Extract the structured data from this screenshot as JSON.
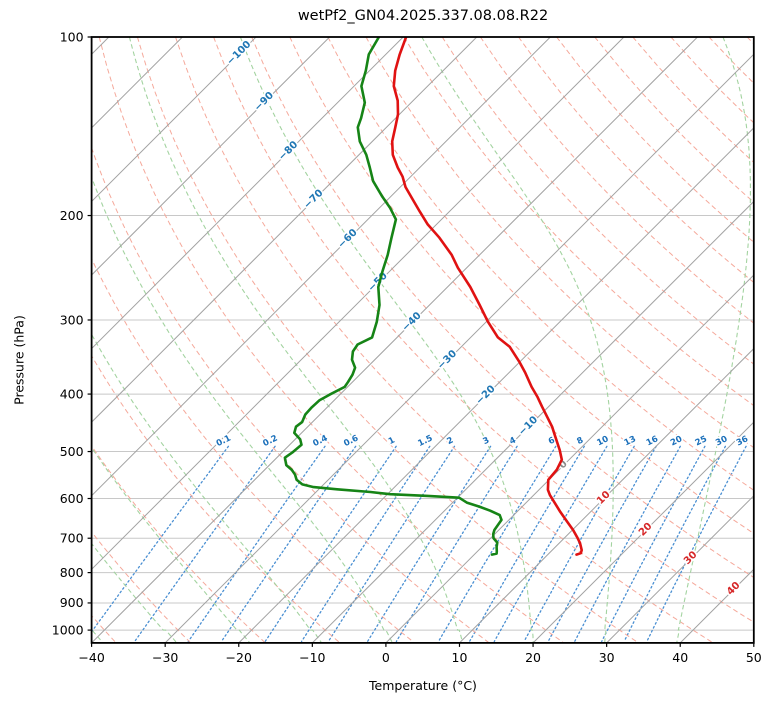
{
  "title": "wetPf2_GN04.2025.337.08.08.R22",
  "axes": {
    "xlabel": "Temperature (°C)",
    "ylabel": "Pressure (hPa)",
    "x_ticks": [
      -40,
      -30,
      -20,
      -10,
      0,
      10,
      20,
      30,
      40,
      50
    ],
    "y_ticks": [
      100,
      200,
      300,
      400,
      500,
      600,
      700,
      800,
      900,
      1000
    ],
    "x_range": [
      -40,
      50
    ],
    "p_range": [
      100,
      1051
    ]
  },
  "colors": {
    "temperature_line": "#e01212",
    "dewpoint_line": "#168416",
    "isobar": "#c8c8c8",
    "isotherm": "#a2a2a2",
    "dry_adiabat": "#f5a99b",
    "moist_adiabat": "#a3d3a0",
    "mixing_line": "#4a8fd2",
    "mixing_label": "#1a6fba",
    "isotherm_label_neg": "#2077b4",
    "isotherm_label_zero": "#8a8a8a",
    "isotherm_label_pos": "#d62728",
    "axis": "#000000"
  },
  "chart_data": {
    "type": "line",
    "subtype": "skew-t-log-p",
    "title": "wetPf2_GN04.2025.337.08.08.R22",
    "xlabel": "Temperature (°C)",
    "ylabel": "Pressure (hPa)",
    "xlim": [
      -40,
      50
    ],
    "plim": [
      100,
      1051
    ],
    "skew_deg": 45,
    "grid": {
      "isotherms": {
        "start": -120,
        "end": 50,
        "step": 10
      },
      "dry_adiabats_theta_c": {
        "start": -40,
        "end": 190,
        "step": 10
      },
      "moist_adiabats_t0_c": {
        "start": -42,
        "end": 38,
        "step": 10
      },
      "mixing_ratio_g_kg": [
        0.1,
        0.2,
        0.4,
        0.6,
        1,
        1.5,
        2,
        3,
        4,
        6,
        8,
        10,
        13,
        16,
        20,
        25,
        30,
        36
      ],
      "mixing_line_p_top": 490,
      "mixing_label_p": 500
    },
    "isotherm_labels": [
      {
        "value": -100,
        "p": 106,
        "color_key": "isotherm_label_neg"
      },
      {
        "value": -90,
        "p": 128,
        "color_key": "isotherm_label_neg"
      },
      {
        "value": -80,
        "p": 155,
        "color_key": "isotherm_label_neg"
      },
      {
        "value": -70,
        "p": 187,
        "color_key": "isotherm_label_neg"
      },
      {
        "value": -60,
        "p": 218,
        "color_key": "isotherm_label_neg"
      },
      {
        "value": -50,
        "p": 258,
        "color_key": "isotherm_label_neg"
      },
      {
        "value": -40,
        "p": 301,
        "color_key": "isotherm_label_neg"
      },
      {
        "value": -30,
        "p": 349,
        "color_key": "isotherm_label_neg"
      },
      {
        "value": -20,
        "p": 400,
        "color_key": "isotherm_label_neg"
      },
      {
        "value": -10,
        "p": 451,
        "color_key": "isotherm_label_neg"
      },
      {
        "value": 0,
        "p": 524,
        "color_key": "isotherm_label_zero"
      },
      {
        "value": 10,
        "p": 596,
        "color_key": "isotherm_label_pos"
      },
      {
        "value": 20,
        "p": 674,
        "color_key": "isotherm_label_pos"
      },
      {
        "value": 30,
        "p": 753,
        "color_key": "isotherm_label_pos"
      },
      {
        "value": 40,
        "p": 848,
        "color_key": "isotherm_label_pos"
      }
    ],
    "series": [
      {
        "name": "temperature",
        "color_key": "temperature_line",
        "points_p_t": [
          [
            100,
            -79.6
          ],
          [
            107,
            -78.1
          ],
          [
            114,
            -76.5
          ],
          [
            121,
            -74.6
          ],
          [
            128,
            -72.1
          ],
          [
            135,
            -70.2
          ],
          [
            142,
            -68.8
          ],
          [
            150,
            -67.3
          ],
          [
            158,
            -65.4
          ],
          [
            166,
            -63.0
          ],
          [
            172,
            -61.1
          ],
          [
            179,
            -59.3
          ],
          [
            189,
            -56.3
          ],
          [
            197,
            -54.0
          ],
          [
            207,
            -51.2
          ],
          [
            218,
            -47.8
          ],
          [
            233,
            -43.8
          ],
          [
            245,
            -41.2
          ],
          [
            264,
            -36.9
          ],
          [
            283,
            -33.2
          ],
          [
            302,
            -29.8
          ],
          [
            321,
            -26.3
          ],
          [
            333,
            -23.4
          ],
          [
            354,
            -19.9
          ],
          [
            368,
            -17.8
          ],
          [
            389,
            -15.0
          ],
          [
            404,
            -12.9
          ],
          [
            420,
            -10.9
          ],
          [
            437,
            -8.8
          ],
          [
            454,
            -6.8
          ],
          [
            472,
            -5.0
          ],
          [
            497,
            -2.6
          ],
          [
            516,
            -1.0
          ],
          [
            537,
            -0.3
          ],
          [
            558,
            -0.1
          ],
          [
            580,
            1.2
          ],
          [
            592,
            2.2
          ],
          [
            610,
            3.9
          ],
          [
            632,
            5.9
          ],
          [
            657,
            8.2
          ],
          [
            678,
            10.1
          ],
          [
            697,
            11.6
          ],
          [
            713,
            12.8
          ],
          [
            733,
            14.0
          ],
          [
            742,
            14.3
          ],
          [
            746,
            13.9
          ]
        ]
      },
      {
        "name": "dewpoint",
        "color_key": "dewpoint_line",
        "points_p_t": [
          [
            100,
            -83.3
          ],
          [
            107,
            -82.3
          ],
          [
            114,
            -80.5
          ],
          [
            121,
            -79.0
          ],
          [
            129,
            -76.3
          ],
          [
            137,
            -74.7
          ],
          [
            142,
            -73.9
          ],
          [
            150,
            -71.7
          ],
          [
            158,
            -69.0
          ],
          [
            166,
            -66.8
          ],
          [
            175,
            -64.5
          ],
          [
            186,
            -61.1
          ],
          [
            194,
            -58.6
          ],
          [
            203,
            -56.2
          ],
          [
            218,
            -54.3
          ],
          [
            233,
            -52.5
          ],
          [
            248,
            -51.0
          ],
          [
            264,
            -49.4
          ],
          [
            283,
            -46.8
          ],
          [
            302,
            -44.9
          ],
          [
            321,
            -43.4
          ],
          [
            330,
            -44.4
          ],
          [
            339,
            -44.1
          ],
          [
            350,
            -43.1
          ],
          [
            361,
            -41.6
          ],
          [
            371,
            -41.0
          ],
          [
            382,
            -40.6
          ],
          [
            389,
            -40.4
          ],
          [
            401,
            -41.4
          ],
          [
            410,
            -42.0
          ],
          [
            421,
            -42.1
          ],
          [
            433,
            -42.0
          ],
          [
            446,
            -41.4
          ],
          [
            454,
            -41.6
          ],
          [
            465,
            -41.0
          ],
          [
            477,
            -39.3
          ],
          [
            487,
            -38.4
          ],
          [
            502,
            -38.6
          ],
          [
            512,
            -38.9
          ],
          [
            527,
            -37.7
          ],
          [
            537,
            -36.3
          ],
          [
            547,
            -35.2
          ],
          [
            558,
            -34.3
          ],
          [
            568,
            -32.9
          ],
          [
            574,
            -31.0
          ],
          [
            579,
            -27.5
          ],
          [
            585,
            -22.6
          ],
          [
            590,
            -19.6
          ],
          [
            594,
            -14.3
          ],
          [
            598,
            -9.8
          ],
          [
            610,
            -8.0
          ],
          [
            619,
            -5.9
          ],
          [
            629,
            -3.8
          ],
          [
            640,
            -1.9
          ],
          [
            652,
            -1.0
          ],
          [
            665,
            -0.8
          ],
          [
            678,
            -0.6
          ],
          [
            689,
            -0.2
          ],
          [
            700,
            0.4
          ],
          [
            712,
            1.5
          ],
          [
            724,
            2.0
          ],
          [
            736,
            2.6
          ],
          [
            743,
            2.9
          ],
          [
            746,
            2.4
          ]
        ]
      }
    ]
  }
}
